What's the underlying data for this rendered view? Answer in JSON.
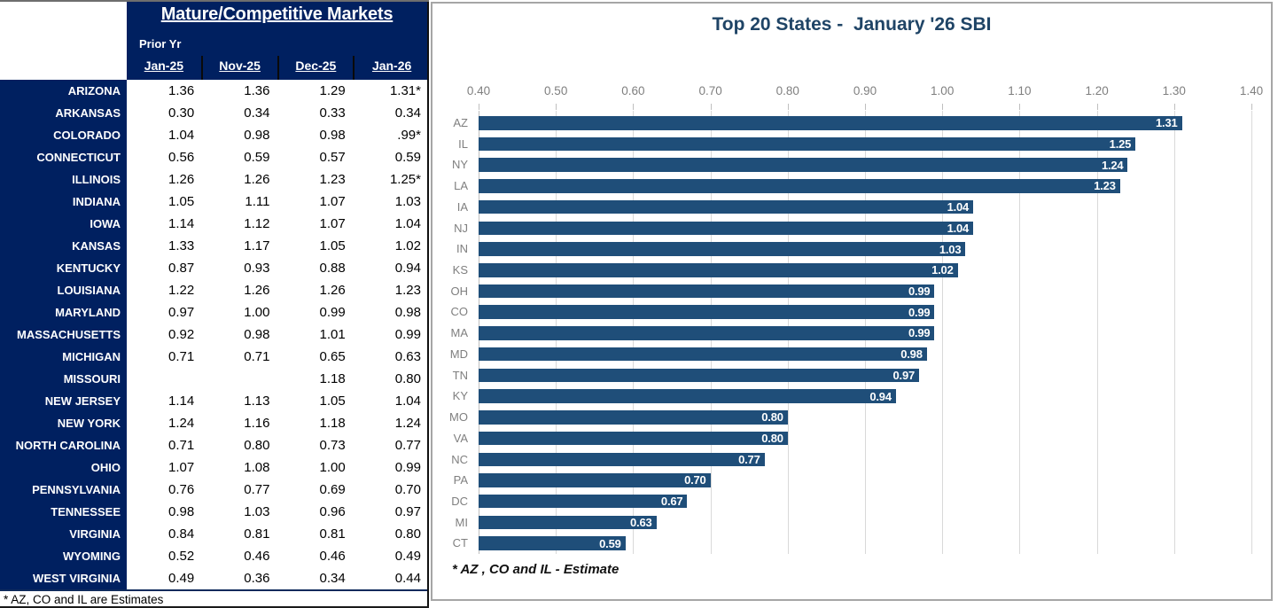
{
  "table": {
    "title": "Mature/Competitive Markets",
    "subtitle": "Prior Yr",
    "columns": [
      "Jan-25",
      "Nov-25",
      "Dec-25",
      "Jan-26"
    ],
    "rows": [
      {
        "state": "ARIZONA",
        "values": [
          "1.36",
          "1.36",
          "1.29",
          "1.31*"
        ]
      },
      {
        "state": "ARKANSAS",
        "values": [
          "0.30",
          "0.34",
          "0.33",
          "0.34"
        ]
      },
      {
        "state": "COLORADO",
        "values": [
          "1.04",
          "0.98",
          "0.98",
          ".99*"
        ]
      },
      {
        "state": "CONNECTICUT",
        "values": [
          "0.56",
          "0.59",
          "0.57",
          "0.59"
        ]
      },
      {
        "state": "ILLINOIS",
        "values": [
          "1.26",
          "1.26",
          "1.23",
          "1.25*"
        ]
      },
      {
        "state": "INDIANA",
        "values": [
          "1.05",
          "1.11",
          "1.07",
          "1.03"
        ]
      },
      {
        "state": "IOWA",
        "values": [
          "1.14",
          "1.12",
          "1.07",
          "1.04"
        ]
      },
      {
        "state": "KANSAS",
        "values": [
          "1.33",
          "1.17",
          "1.05",
          "1.02"
        ]
      },
      {
        "state": "KENTUCKY",
        "values": [
          "0.87",
          "0.93",
          "0.88",
          "0.94"
        ]
      },
      {
        "state": "LOUISIANA",
        "values": [
          "1.22",
          "1.26",
          "1.26",
          "1.23"
        ]
      },
      {
        "state": "MARYLAND",
        "values": [
          "0.97",
          "1.00",
          "0.99",
          "0.98"
        ]
      },
      {
        "state": "MASSACHUSETTS",
        "values": [
          "0.92",
          "0.98",
          "1.01",
          "0.99"
        ]
      },
      {
        "state": "MICHIGAN",
        "values": [
          "0.71",
          "0.71",
          "0.65",
          "0.63"
        ]
      },
      {
        "state": "MISSOURI",
        "values": [
          "",
          "",
          "1.18",
          "0.80"
        ]
      },
      {
        "state": "NEW JERSEY",
        "values": [
          "1.14",
          "1.13",
          "1.05",
          "1.04"
        ]
      },
      {
        "state": "NEW YORK",
        "values": [
          "1.24",
          "1.16",
          "1.18",
          "1.24"
        ]
      },
      {
        "state": "NORTH CAROLINA",
        "values": [
          "0.71",
          "0.80",
          "0.73",
          "0.77"
        ]
      },
      {
        "state": "OHIO",
        "values": [
          "1.07",
          "1.08",
          "1.00",
          "0.99"
        ]
      },
      {
        "state": "PENNSYLVANIA",
        "values": [
          "0.76",
          "0.77",
          "0.69",
          "0.70"
        ]
      },
      {
        "state": "TENNESSEE",
        "values": [
          "0.98",
          "1.03",
          "0.96",
          "0.97"
        ]
      },
      {
        "state": "VIRGINIA",
        "values": [
          "0.84",
          "0.81",
          "0.81",
          "0.80"
        ]
      },
      {
        "state": "WYOMING",
        "values": [
          "0.52",
          "0.46",
          "0.46",
          "0.49"
        ]
      },
      {
        "state": "WEST VIRGINIA",
        "values": [
          "0.49",
          "0.36",
          "0.34",
          "0.44"
        ]
      }
    ],
    "footnote": "* AZ, CO and IL are Estimates"
  },
  "chart_data": {
    "type": "bar",
    "orientation": "horizontal",
    "title": "Top 20 States -  January '26 SBI",
    "categories": [
      "AZ",
      "IL",
      "NY",
      "LA",
      "IA",
      "NJ",
      "IN",
      "KS",
      "OH",
      "CO",
      "MA",
      "MD",
      "TN",
      "KY",
      "MO",
      "VA",
      "NC",
      "PA",
      "DC",
      "MI",
      "CT"
    ],
    "values": [
      1.31,
      1.25,
      1.24,
      1.23,
      1.04,
      1.04,
      1.03,
      1.02,
      0.99,
      0.99,
      0.99,
      0.98,
      0.97,
      0.94,
      0.8,
      0.8,
      0.77,
      0.7,
      0.67,
      0.63,
      0.59
    ],
    "value_labels": [
      "1.31",
      "1.25",
      "1.24",
      "1.23",
      "1.04",
      "1.04",
      "1.03",
      "1.02",
      "0.99",
      "0.99",
      "0.99",
      "0.98",
      "0.97",
      "0.94",
      "0.80",
      "0.80",
      "0.77",
      "0.70",
      "0.67",
      "0.63",
      "0.59"
    ],
    "xlim": [
      0.4,
      1.4
    ],
    "x_ticks": [
      "0.40",
      "0.50",
      "0.60",
      "0.70",
      "0.80",
      "0.90",
      "1.00",
      "1.10",
      "1.20",
      "1.30",
      "1.40"
    ],
    "grid": true,
    "legend": "none",
    "footnote": "* AZ , CO and IL - Estimate",
    "bar_color": "#1F4E79"
  },
  "colors": {
    "table_navy": "#002060",
    "bar_blue": "#1F4E79",
    "title_navy": "#1F4466",
    "axis_text_gray": "#7F7F7F",
    "gridline": "#D9D9D9",
    "chart_border": "#A6A6A6"
  }
}
